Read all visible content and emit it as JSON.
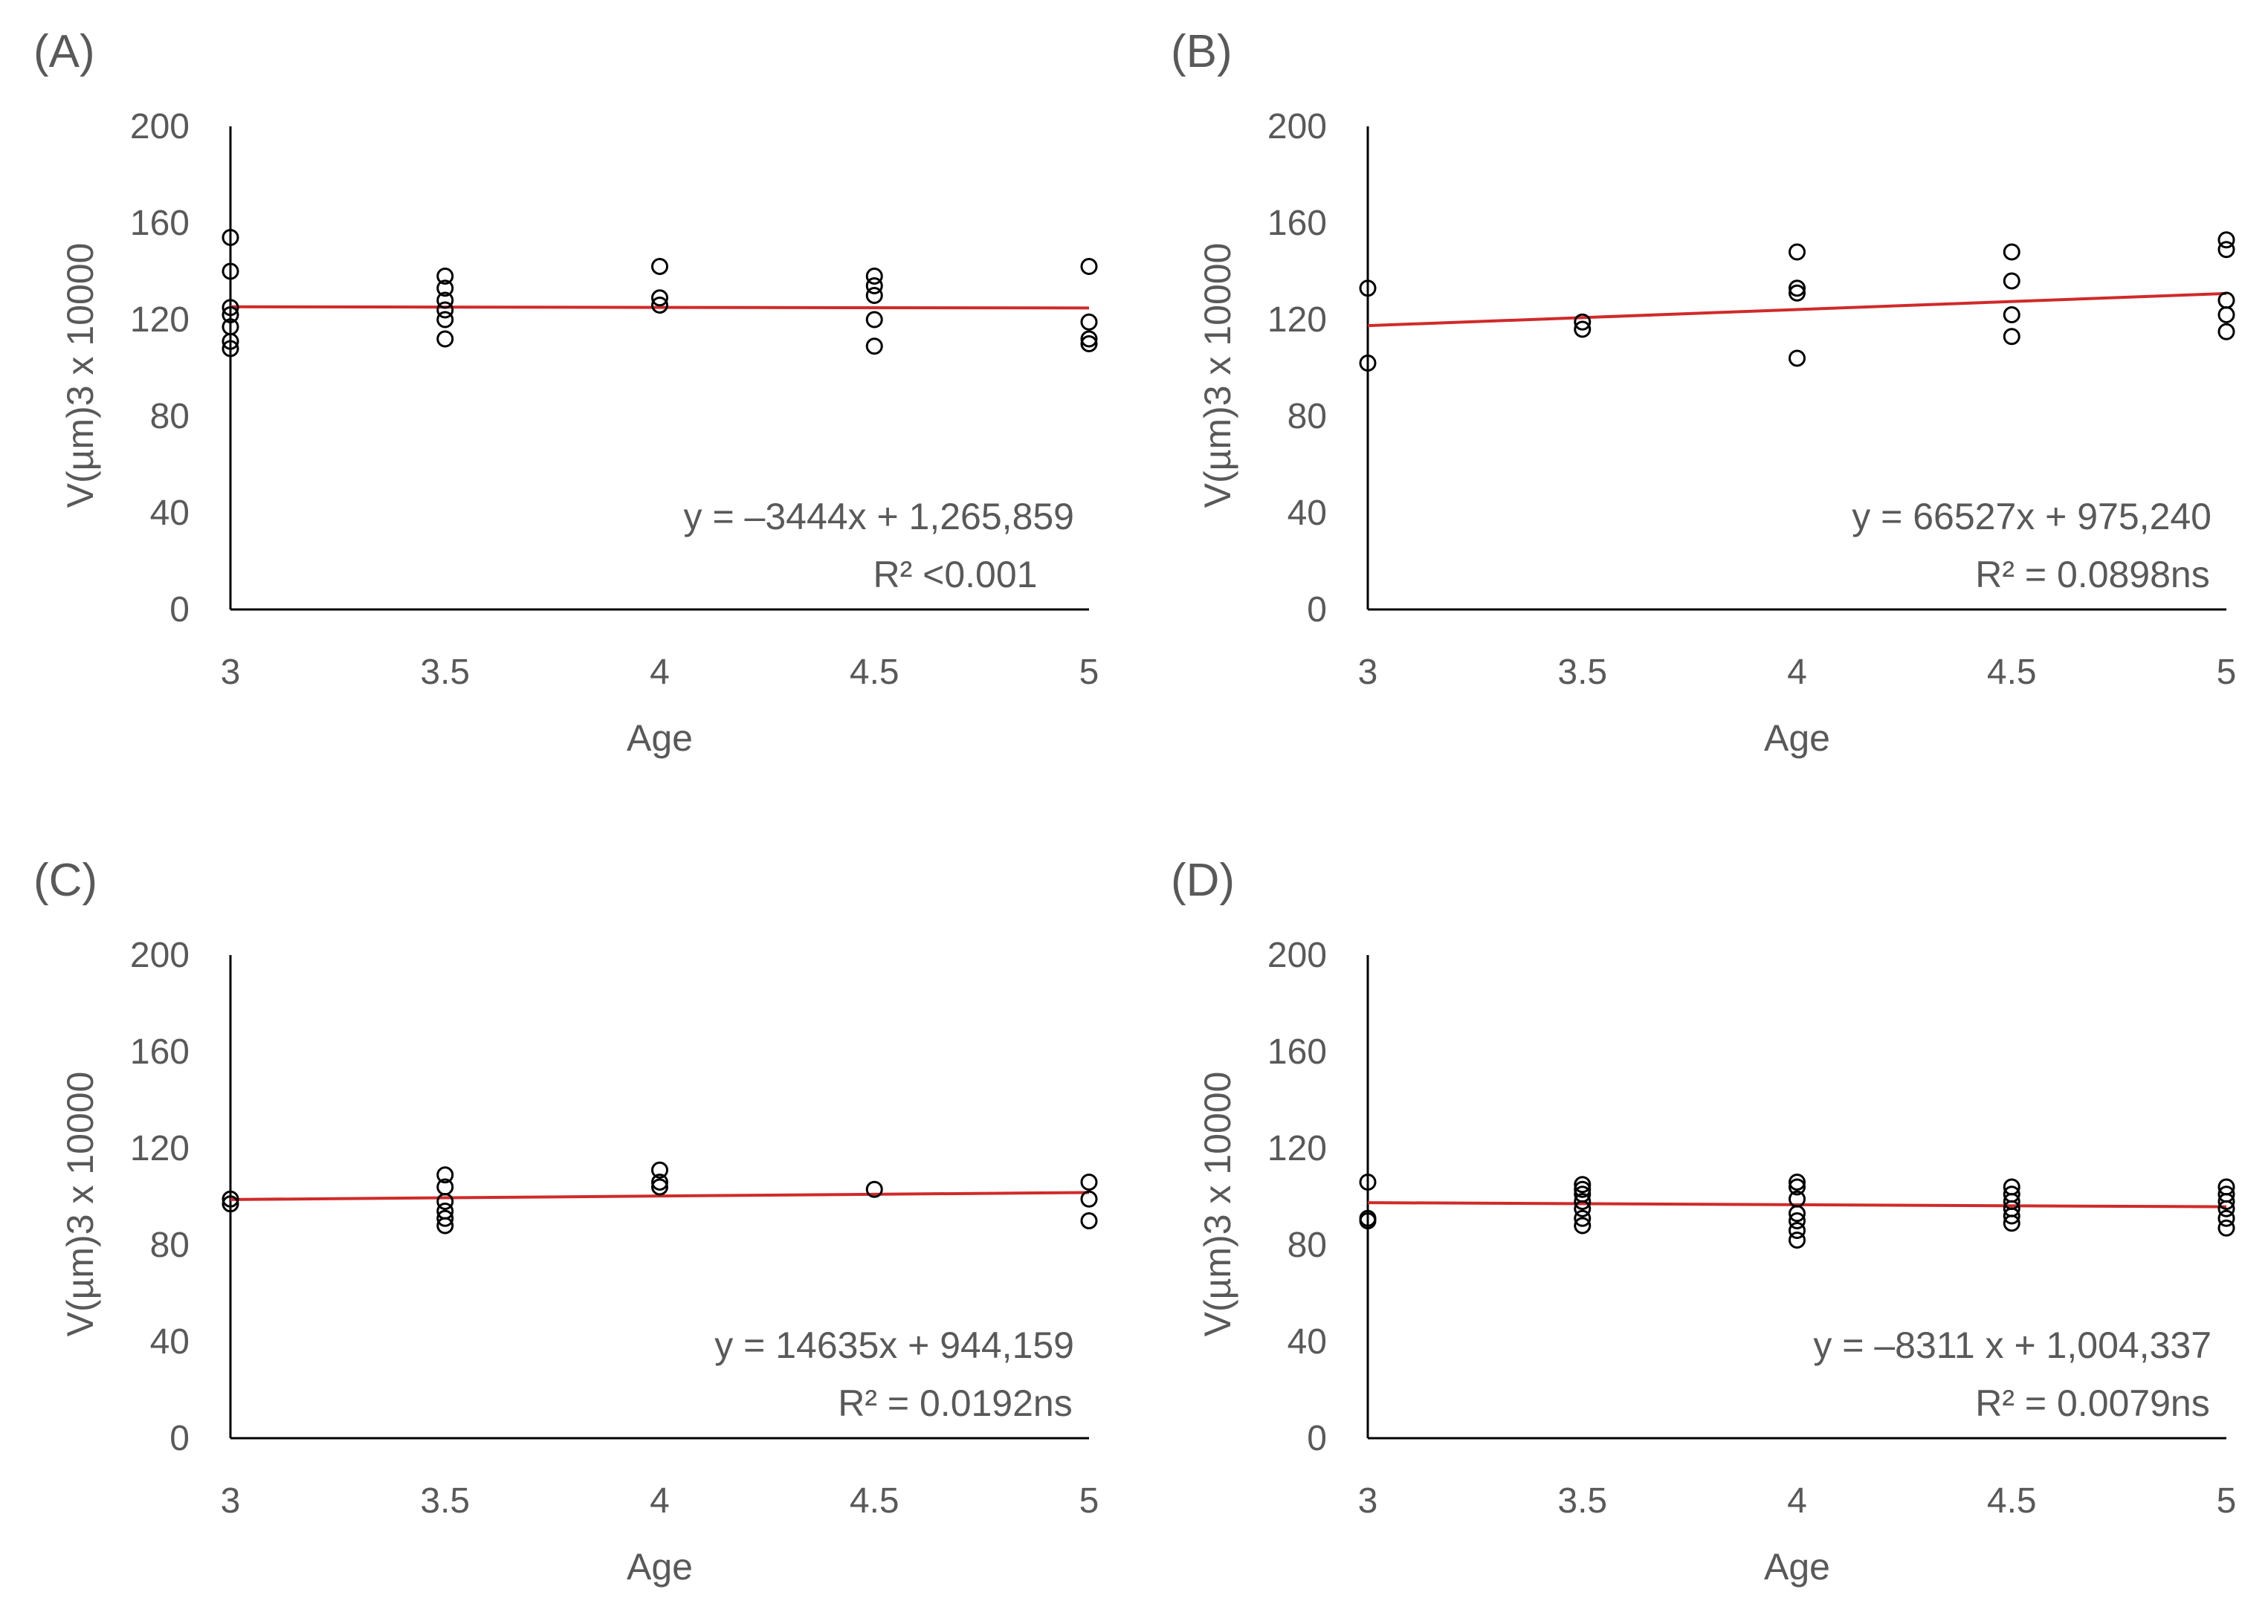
{
  "colors": {
    "trendline": "#d02a2a",
    "marker": "#000000",
    "text": "#595959"
  },
  "chart_data": [
    {
      "panel": "(A)",
      "type": "scatter",
      "xlabel": "Age",
      "ylabel": "V(µm)3 x 10000",
      "xlim": [
        3,
        5
      ],
      "ylim": [
        0,
        200
      ],
      "xticks": [
        "3",
        "3.5",
        "4",
        "4.5",
        "5"
      ],
      "yticks": [
        "0",
        "40",
        "80",
        "120",
        "160",
        "200"
      ],
      "points": [
        [
          3,
          154
        ],
        [
          3,
          140
        ],
        [
          3,
          125
        ],
        [
          3,
          122
        ],
        [
          3,
          117
        ],
        [
          3,
          111
        ],
        [
          3,
          108
        ],
        [
          3.5,
          138
        ],
        [
          3.5,
          133
        ],
        [
          3.5,
          128
        ],
        [
          3.5,
          124
        ],
        [
          3.5,
          120
        ],
        [
          3.5,
          112
        ],
        [
          4,
          142
        ],
        [
          4,
          129
        ],
        [
          4,
          126
        ],
        [
          4.5,
          138
        ],
        [
          4.5,
          134
        ],
        [
          4.5,
          130
        ],
        [
          4.5,
          120
        ],
        [
          4.5,
          109
        ],
        [
          5,
          142
        ],
        [
          5,
          119
        ],
        [
          5,
          112
        ],
        [
          5,
          110
        ]
      ],
      "trendline": {
        "x": [
          3,
          5
        ],
        "y": [
          125.3,
          124.8
        ]
      },
      "equation": "y = –3444x + 1,265,859",
      "r2": "R² <0.001"
    },
    {
      "panel": "(B)",
      "type": "scatter",
      "xlabel": "Age",
      "ylabel": "V(µm)3 x 10000",
      "xlim": [
        3,
        5
      ],
      "ylim": [
        0,
        200
      ],
      "xticks": [
        "3",
        "3.5",
        "4",
        "4.5",
        "5"
      ],
      "yticks": [
        "0",
        "40",
        "80",
        "120",
        "160",
        "200"
      ],
      "points": [
        [
          3,
          133
        ],
        [
          3,
          102
        ],
        [
          3.5,
          119
        ],
        [
          3.5,
          116
        ],
        [
          4,
          148
        ],
        [
          4,
          133
        ],
        [
          4,
          131
        ],
        [
          4,
          104
        ],
        [
          4.5,
          148
        ],
        [
          4.5,
          136
        ],
        [
          4.5,
          122
        ],
        [
          4.5,
          113
        ],
        [
          5,
          153
        ],
        [
          5,
          149
        ],
        [
          5,
          128
        ],
        [
          5,
          122
        ],
        [
          5,
          115
        ]
      ],
      "trendline": {
        "x": [
          3,
          5
        ],
        "y": [
          117.5,
          130.8
        ]
      },
      "equation": "y = 66527x + 975,240",
      "r2": "R² = 0.0898ns"
    },
    {
      "panel": "(C)",
      "type": "scatter",
      "xlabel": "Age",
      "ylabel": "V(µm)3 x 10000",
      "xlim": [
        3,
        5
      ],
      "ylim": [
        0,
        200
      ],
      "xticks": [
        "3",
        "3.5",
        "4",
        "4.5",
        "5"
      ],
      "yticks": [
        "0",
        "40",
        "80",
        "120",
        "160",
        "200"
      ],
      "points": [
        [
          3,
          99
        ],
        [
          3,
          97
        ],
        [
          3.5,
          109
        ],
        [
          3.5,
          104
        ],
        [
          3.5,
          98
        ],
        [
          3.5,
          94
        ],
        [
          3.5,
          91
        ],
        [
          3.5,
          88
        ],
        [
          4,
          111
        ],
        [
          4,
          106
        ],
        [
          4,
          104
        ],
        [
          4.5,
          103
        ],
        [
          5,
          106
        ],
        [
          5,
          99
        ],
        [
          5,
          90
        ]
      ],
      "trendline": {
        "x": [
          3,
          5
        ],
        "y": [
          98.8,
          101.7
        ]
      },
      "equation": "y = 14635x + 944,159",
      "r2": "R² = 0.0192ns"
    },
    {
      "panel": "(D)",
      "type": "scatter",
      "xlabel": "Age",
      "ylabel": "V(µm)3 x 10000",
      "xlim": [
        3,
        5
      ],
      "ylim": [
        0,
        200
      ],
      "xticks": [
        "3",
        "3.5",
        "4",
        "4.5",
        "5"
      ],
      "yticks": [
        "0",
        "40",
        "80",
        "120",
        "160",
        "200"
      ],
      "points": [
        [
          3,
          106
        ],
        [
          3,
          91
        ],
        [
          3,
          90
        ],
        [
          3.5,
          105
        ],
        [
          3.5,
          103
        ],
        [
          3.5,
          101
        ],
        [
          3.5,
          98
        ],
        [
          3.5,
          95
        ],
        [
          3.5,
          91
        ],
        [
          3.5,
          88
        ],
        [
          4,
          106
        ],
        [
          4,
          104
        ],
        [
          4,
          99
        ],
        [
          4,
          93
        ],
        [
          4,
          90
        ],
        [
          4,
          86
        ],
        [
          4,
          82
        ],
        [
          4.5,
          104
        ],
        [
          4.5,
          101
        ],
        [
          4.5,
          98
        ],
        [
          4.5,
          95
        ],
        [
          4.5,
          92
        ],
        [
          4.5,
          89
        ],
        [
          5,
          104
        ],
        [
          5,
          101
        ],
        [
          5,
          98
        ],
        [
          5,
          95
        ],
        [
          5,
          91
        ],
        [
          5,
          87
        ]
      ],
      "trendline": {
        "x": [
          3,
          5
        ],
        "y": [
          97.5,
          95.8
        ]
      },
      "equation": "y = –8311 x + 1,004,337",
      "r2": "R² = 0.0079ns"
    }
  ]
}
